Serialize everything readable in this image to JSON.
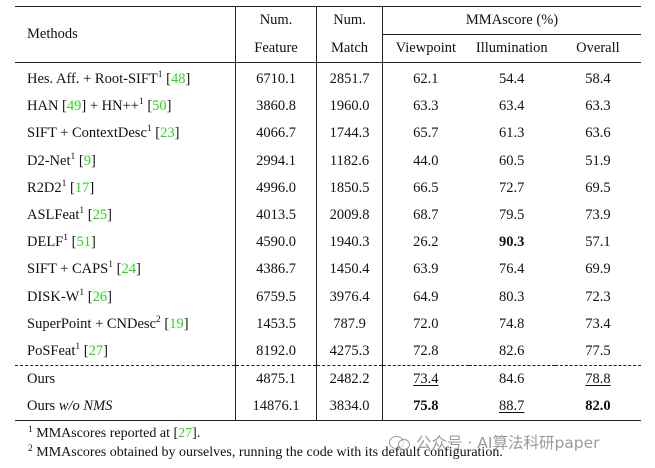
{
  "header": {
    "methods": "Methods",
    "num": "Num.",
    "feature": "Feature",
    "match": "Match",
    "mmascore": "MMAscore (%)",
    "viewpoint": "Viewpoint",
    "illumination": "Illumination",
    "overall": "Overall"
  },
  "rows": [
    {
      "name": "Hes. Aff. + Root-SIFT",
      "sup": "1",
      "pre": " [",
      "cite": "48",
      "post": "]",
      "feature": "6710.1",
      "match": "2851.7",
      "viewpoint": "62.1",
      "illumination": "54.4",
      "overall": "58.4"
    },
    {
      "name": "HAN [",
      "cite1": "49",
      "mid": "] + HN++",
      "sup": "1",
      "pre": " [",
      "cite": "50",
      "post": "]",
      "feature": "3860.8",
      "match": "1960.0",
      "viewpoint": "63.3",
      "illumination": "63.4",
      "overall": "63.3"
    },
    {
      "name": "SIFT + ContextDesc",
      "sup": "1",
      "pre": " [",
      "cite": "23",
      "post": "]",
      "feature": "4066.7",
      "match": "1744.3",
      "viewpoint": "65.7",
      "illumination": "61.3",
      "overall": "63.6"
    },
    {
      "name": "D2-Net",
      "sup": "1",
      "pre": " [",
      "cite": "9",
      "post": "]",
      "feature": "2994.1",
      "match": "1182.6",
      "viewpoint": "44.0",
      "illumination": "60.5",
      "overall": "51.9"
    },
    {
      "name": "R2D2",
      "sup": "1",
      "pre": " [",
      "cite": "17",
      "post": "]",
      "feature": "4996.0",
      "match": "1850.5",
      "viewpoint": "66.5",
      "illumination": "72.7",
      "overall": "69.5"
    },
    {
      "name": "ASLFeat",
      "sup": "1",
      "pre": " [",
      "cite": "25",
      "post": "]",
      "feature": "4013.5",
      "match": "2009.8",
      "viewpoint": "68.7",
      "illumination": "79.5",
      "overall": "73.9"
    },
    {
      "name": "DELF",
      "sup": "1",
      "pre": " [",
      "cite": "51",
      "post": "]",
      "feature": "4590.0",
      "match": "1940.3",
      "viewpoint": "26.2",
      "illumination": "90.3",
      "overall": "57.1"
    },
    {
      "name": "SIFT + CAPS",
      "sup": "1",
      "pre": " [",
      "cite": "24",
      "post": "]",
      "feature": "4386.7",
      "match": "1450.4",
      "viewpoint": "63.9",
      "illumination": "76.4",
      "overall": "69.9"
    },
    {
      "name": "DISK-W",
      "sup": "1",
      "pre": " [",
      "cite": "26",
      "post": "]",
      "feature": "6759.5",
      "match": "3976.4",
      "viewpoint": "64.9",
      "illumination": "80.3",
      "overall": "72.3"
    },
    {
      "name": "SuperPoint + CNDesc",
      "sup": "2",
      "pre": " [",
      "cite": "19",
      "post": "]",
      "feature": "1453.5",
      "match": "787.9",
      "viewpoint": "72.0",
      "illumination": "74.8",
      "overall": "73.4"
    },
    {
      "name": "PoSFeat",
      "sup": "1",
      "pre": " [",
      "cite": "27",
      "post": "]",
      "feature": "8192.0",
      "match": "4275.3",
      "viewpoint": "72.8",
      "illumination": "82.6",
      "overall": "77.5"
    }
  ],
  "ours": [
    {
      "name": "Ours",
      "feature": "4875.1",
      "match": "2482.2",
      "viewpoint": "73.4",
      "illumination": "84.6",
      "overall": "78.8"
    },
    {
      "name": "Ours ",
      "name_em": "w/o NMS",
      "feature": "14876.1",
      "match": "3834.0",
      "viewpoint": "75.8",
      "illumination": "88.7",
      "overall": "82.0"
    }
  ],
  "notes": [
    {
      "sup": "1",
      "text": " MMAscores reported at [",
      "cite": "27",
      "post": "]."
    },
    {
      "sup": "2",
      "text": " MMAscores obtained by ourselves, running the code with its default configuration."
    }
  ],
  "watermark": "公众号 · AI算法科研paper"
}
